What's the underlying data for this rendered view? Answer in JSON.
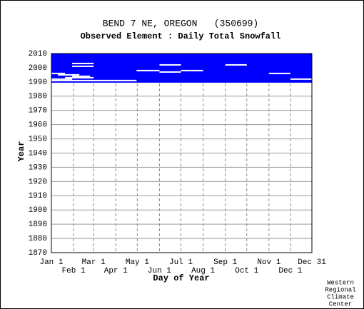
{
  "chart_data": {
    "type": "heatmap",
    "title": "BEND 7 NE, OREGON   (350699)",
    "subtitle": "Observed Element : Daily Total Snowfall",
    "x_label": "Day of Year",
    "y_label": "Year",
    "credit": [
      "Western",
      "Regional",
      "Climate",
      "Center"
    ],
    "xlim": [
      1,
      365
    ],
    "ylim": [
      1870,
      2010
    ],
    "xticks": [
      {
        "value": 1,
        "label": "Jan 1"
      },
      {
        "value": 32,
        "label": "Feb 1"
      },
      {
        "value": 60,
        "label": "Mar 1"
      },
      {
        "value": 91,
        "label": "Apr 1"
      },
      {
        "value": 121,
        "label": "May 1"
      },
      {
        "value": 152,
        "label": "Jun 1"
      },
      {
        "value": 182,
        "label": "Jul 1"
      },
      {
        "value": 213,
        "label": "Aug 1"
      },
      {
        "value": 244,
        "label": "Sep 1"
      },
      {
        "value": 274,
        "label": "Oct 1"
      },
      {
        "value": 305,
        "label": "Nov 1"
      },
      {
        "value": 335,
        "label": "Dec 1"
      },
      {
        "value": 365,
        "label": "Dec 31"
      }
    ],
    "yticks": [
      1870,
      1880,
      1890,
      1900,
      1910,
      1920,
      1930,
      1940,
      1950,
      1960,
      1970,
      1980,
      1990,
      2000,
      2010
    ],
    "grid": true,
    "block_color": "#0000ff",
    "gap_color": "#ffffff",
    "blocks": [
      {
        "years": [
          1990,
          2010
        ],
        "days": [
          1,
          365
        ]
      }
    ],
    "gaps": [
      [
        1991,
        1,
        120
      ],
      [
        1992,
        1,
        30
      ],
      [
        1993,
        20,
        60
      ],
      [
        1994,
        30,
        55
      ],
      [
        1995,
        10,
        40
      ],
      [
        1996,
        1,
        20
      ],
      [
        1998,
        120,
        152
      ],
      [
        1997,
        152,
        182
      ],
      [
        2002,
        152,
        182
      ],
      [
        1998,
        182,
        213
      ],
      [
        2002,
        244,
        274
      ],
      [
        1996,
        305,
        335
      ],
      [
        1992,
        335,
        365
      ],
      [
        2001,
        30,
        60
      ],
      [
        2003,
        30,
        60
      ]
    ]
  }
}
